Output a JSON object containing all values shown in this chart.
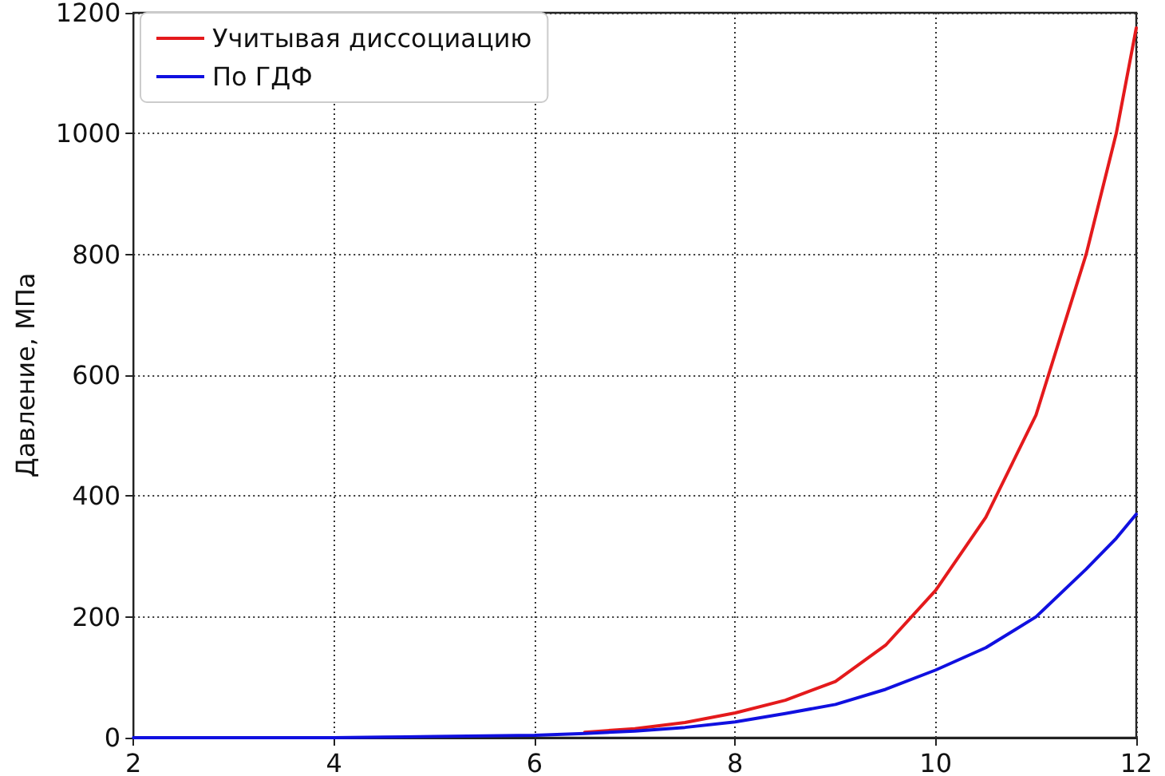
{
  "chart_data": {
    "type": "line",
    "ylabel": "Давление, МПа",
    "x": [
      2,
      2.5,
      3,
      3.5,
      4,
      4.5,
      5,
      5.5,
      6,
      6.5,
      7,
      7.5,
      8,
      8.5,
      9,
      9.5,
      10,
      10.5,
      11,
      11.5,
      11.8,
      12
    ],
    "series": [
      {
        "name": "Учитывая диссоциацию",
        "color": "#e41a1c",
        "values": [
          null,
          null,
          null,
          null,
          null,
          null,
          null,
          null,
          null,
          9,
          15,
          25,
          41,
          62,
          93,
          153,
          244,
          365,
          534,
          800,
          1000,
          1175
        ]
      },
      {
        "name": "По ГДФ",
        "color": "#1010e0",
        "values": [
          0,
          0,
          0,
          0,
          0,
          1,
          2,
          3,
          4,
          7,
          11,
          17,
          26,
          40,
          55,
          80,
          112,
          149,
          200,
          279,
          330,
          370
        ]
      }
    ],
    "xlim": [
      2,
      12
    ],
    "xticks": [
      2,
      4,
      6,
      8,
      10,
      12
    ],
    "ylim": [
      0,
      1200
    ],
    "yticks": [
      0,
      200,
      400,
      600,
      800,
      1000,
      1200
    ],
    "grid": true,
    "legend": "top left",
    "marker": "none",
    "line_style": "solid"
  }
}
